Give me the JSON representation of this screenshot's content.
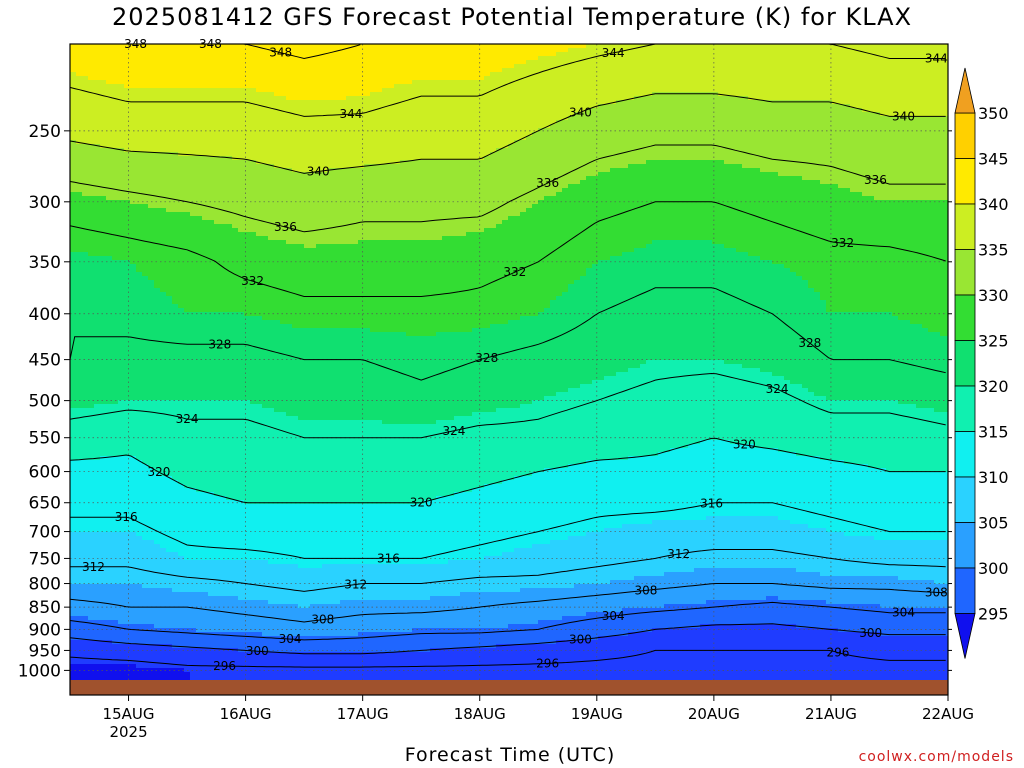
{
  "title": "2025081412 GFS Forecast Potential Temperature (K) for KLAX",
  "watermark": "coolwx.com/models",
  "chart_data": {
    "type": "heatmap",
    "xlabel": "Forecast Time (UTC)",
    "ylabel": "",
    "x_ticks": [
      "15AUG",
      "16AUG",
      "17AUG",
      "18AUG",
      "19AUG",
      "20AUG",
      "21AUG",
      "22AUG"
    ],
    "x_year_label": "2025",
    "x_range_days_after_15AUG": [
      -0.5,
      7.0
    ],
    "y_ticks": [
      250,
      300,
      350,
      400,
      450,
      500,
      550,
      600,
      650,
      700,
      750,
      800,
      850,
      900,
      950,
      1000
    ],
    "y_scale": "log",
    "y_range_hpa": [
      200,
      1025
    ],
    "grid": true,
    "colorbar": {
      "levels": [
        295,
        300,
        305,
        310,
        315,
        320,
        325,
        330,
        335,
        340,
        345,
        350
      ],
      "labels": [
        "295",
        "300",
        "305",
        "310",
        "315",
        "320",
        "325",
        "330",
        "335",
        "340",
        "345",
        "350"
      ],
      "colors": [
        "#1010ee",
        "#1f3cff",
        "#1f66ff",
        "#2aa0ff",
        "#2ad2ff",
        "#10f0f0",
        "#10f0b0",
        "#10e070",
        "#33dd33",
        "#99e633",
        "#ccee22",
        "#ffea00",
        "#ffd000",
        "#f0a020"
      ]
    },
    "contour_levels": [
      296,
      300,
      304,
      308,
      312,
      316,
      320,
      324,
      328,
      332,
      336,
      340,
      344,
      348
    ],
    "profiles": [
      {
        "day": -0.5,
        "theta": [
          [
            1025,
            294
          ],
          [
            1000,
            294
          ],
          [
            950,
            297
          ],
          [
            900,
            302
          ],
          [
            850,
            307
          ],
          [
            800,
            310
          ],
          [
            750,
            313
          ],
          [
            700,
            315
          ],
          [
            650,
            317
          ],
          [
            600,
            319
          ],
          [
            550,
            322
          ],
          [
            500,
            326
          ],
          [
            450,
            328
          ],
          [
            400,
            328
          ],
          [
            350,
            329
          ],
          [
            300,
            334
          ],
          [
            250,
            341
          ],
          [
            200,
            347
          ]
        ]
      },
      {
        "day": 0.0,
        "theta": [
          [
            1025,
            294
          ],
          [
            1000,
            294
          ],
          [
            950,
            298
          ],
          [
            900,
            304
          ],
          [
            850,
            308
          ],
          [
            800,
            310
          ],
          [
            750,
            313
          ],
          [
            700,
            315
          ],
          [
            650,
            317
          ],
          [
            600,
            319
          ],
          [
            550,
            321
          ],
          [
            500,
            325
          ],
          [
            450,
            327
          ],
          [
            400,
            329
          ],
          [
            350,
            330
          ],
          [
            300,
            335
          ],
          [
            250,
            342
          ],
          [
            200,
            348
          ]
        ]
      },
      {
        "day": 0.5,
        "theta": [
          [
            1025,
            295
          ],
          [
            1000,
            295
          ],
          [
            950,
            299
          ],
          [
            900,
            305
          ],
          [
            850,
            308
          ],
          [
            800,
            311
          ],
          [
            750,
            315
          ],
          [
            700,
            317
          ],
          [
            650,
            319
          ],
          [
            600,
            321
          ],
          [
            550,
            323
          ],
          [
            500,
            325
          ],
          [
            450,
            327
          ],
          [
            400,
            330
          ],
          [
            350,
            331
          ],
          [
            300,
            336
          ],
          [
            250,
            342
          ],
          [
            200,
            348
          ]
        ]
      },
      {
        "day": 1.0,
        "theta": [
          [
            1025,
            295
          ],
          [
            1000,
            295
          ],
          [
            950,
            300
          ],
          [
            900,
            306
          ],
          [
            850,
            309
          ],
          [
            800,
            312
          ],
          [
            750,
            315
          ],
          [
            700,
            318
          ],
          [
            650,
            320
          ],
          [
            600,
            322
          ],
          [
            550,
            323
          ],
          [
            500,
            325
          ],
          [
            450,
            327
          ],
          [
            400,
            330
          ],
          [
            350,
            333
          ],
          [
            300,
            337
          ],
          [
            250,
            342
          ],
          [
            200,
            348
          ]
        ]
      },
      {
        "day": 1.5,
        "theta": [
          [
            1025,
            295
          ],
          [
            1000,
            295
          ],
          [
            950,
            301
          ],
          [
            900,
            307
          ],
          [
            850,
            310
          ],
          [
            800,
            313
          ],
          [
            750,
            316
          ],
          [
            700,
            318
          ],
          [
            650,
            320
          ],
          [
            600,
            322
          ],
          [
            550,
            324
          ],
          [
            500,
            326
          ],
          [
            450,
            328
          ],
          [
            400,
            331
          ],
          [
            350,
            334
          ],
          [
            300,
            338
          ],
          [
            250,
            343
          ],
          [
            200,
            349
          ]
        ]
      },
      {
        "day": 2.0,
        "theta": [
          [
            1025,
            295
          ],
          [
            1000,
            295
          ],
          [
            950,
            301
          ],
          [
            900,
            306
          ],
          [
            850,
            309
          ],
          [
            800,
            312
          ],
          [
            750,
            316
          ],
          [
            700,
            318
          ],
          [
            650,
            320
          ],
          [
            600,
            322
          ],
          [
            550,
            324
          ],
          [
            500,
            326
          ],
          [
            450,
            328
          ],
          [
            400,
            331
          ],
          [
            350,
            334
          ],
          [
            300,
            337
          ],
          [
            250,
            343
          ],
          [
            200,
            348
          ]
        ]
      },
      {
        "day": 2.5,
        "theta": [
          [
            1025,
            295
          ],
          [
            1000,
            295
          ],
          [
            950,
            300
          ],
          [
            900,
            305
          ],
          [
            850,
            309
          ],
          [
            800,
            312
          ],
          [
            750,
            316
          ],
          [
            700,
            318
          ],
          [
            650,
            320
          ],
          [
            600,
            322
          ],
          [
            550,
            324
          ],
          [
            500,
            327
          ],
          [
            450,
            329
          ],
          [
            400,
            331
          ],
          [
            350,
            334
          ],
          [
            300,
            337
          ],
          [
            250,
            342
          ],
          [
            200,
            347
          ]
        ]
      },
      {
        "day": 3.0,
        "theta": [
          [
            1025,
            295
          ],
          [
            1000,
            295
          ],
          [
            950,
            299
          ],
          [
            900,
            305
          ],
          [
            850,
            308
          ],
          [
            800,
            311
          ],
          [
            750,
            315
          ],
          [
            700,
            317
          ],
          [
            650,
            319
          ],
          [
            600,
            321
          ],
          [
            550,
            323
          ],
          [
            500,
            326
          ],
          [
            450,
            328
          ],
          [
            400,
            331
          ],
          [
            350,
            333
          ],
          [
            300,
            337
          ],
          [
            250,
            342
          ],
          [
            200,
            347
          ]
        ]
      },
      {
        "day": 3.5,
        "theta": [
          [
            1025,
            295
          ],
          [
            1000,
            295
          ],
          [
            950,
            298
          ],
          [
            900,
            304
          ],
          [
            850,
            307
          ],
          [
            800,
            311
          ],
          [
            750,
            314
          ],
          [
            700,
            316
          ],
          [
            650,
            318
          ],
          [
            600,
            320
          ],
          [
            550,
            323
          ],
          [
            500,
            325
          ],
          [
            450,
            327
          ],
          [
            400,
            330
          ],
          [
            350,
            332
          ],
          [
            300,
            335
          ],
          [
            250,
            340
          ],
          [
            200,
            346
          ]
        ]
      },
      {
        "day": 4.0,
        "theta": [
          [
            1025,
            295
          ],
          [
            1000,
            295
          ],
          [
            950,
            297
          ],
          [
            900,
            302
          ],
          [
            850,
            306
          ],
          [
            800,
            310
          ],
          [
            750,
            313
          ],
          [
            700,
            315
          ],
          [
            650,
            317
          ],
          [
            600,
            319
          ],
          [
            550,
            322
          ],
          [
            500,
            324
          ],
          [
            450,
            326
          ],
          [
            400,
            328
          ],
          [
            350,
            330
          ],
          [
            300,
            333
          ],
          [
            250,
            338
          ],
          [
            200,
            345
          ]
        ]
      },
      {
        "day": 4.5,
        "theta": [
          [
            1025,
            295
          ],
          [
            1000,
            295
          ],
          [
            950,
            296
          ],
          [
            900,
            300
          ],
          [
            850,
            305
          ],
          [
            800,
            309
          ],
          [
            750,
            312
          ],
          [
            700,
            314
          ],
          [
            650,
            317
          ],
          [
            600,
            319
          ],
          [
            550,
            321
          ],
          [
            500,
            323
          ],
          [
            450,
            325
          ],
          [
            400,
            327
          ],
          [
            350,
            329
          ],
          [
            300,
            332
          ],
          [
            250,
            337
          ],
          [
            200,
            344
          ]
        ]
      },
      {
        "day": 5.0,
        "theta": [
          [
            1025,
            295
          ],
          [
            1000,
            295
          ],
          [
            950,
            296
          ],
          [
            900,
            299
          ],
          [
            850,
            304
          ],
          [
            800,
            308
          ],
          [
            750,
            311
          ],
          [
            700,
            314
          ],
          [
            650,
            316
          ],
          [
            600,
            318
          ],
          [
            550,
            320
          ],
          [
            500,
            322
          ],
          [
            450,
            325
          ],
          [
            400,
            327
          ],
          [
            350,
            329
          ],
          [
            300,
            332
          ],
          [
            250,
            337
          ],
          [
            200,
            344
          ]
        ]
      },
      {
        "day": 5.5,
        "theta": [
          [
            1025,
            295
          ],
          [
            1000,
            295
          ],
          [
            950,
            296
          ],
          [
            900,
            299
          ],
          [
            850,
            303
          ],
          [
            800,
            308
          ],
          [
            750,
            311
          ],
          [
            700,
            314
          ],
          [
            650,
            316
          ],
          [
            600,
            318
          ],
          [
            550,
            321
          ],
          [
            500,
            323
          ],
          [
            450,
            326
          ],
          [
            400,
            328
          ],
          [
            350,
            330
          ],
          [
            300,
            333
          ],
          [
            250,
            338
          ],
          [
            200,
            344
          ]
        ]
      },
      {
        "day": 6.0,
        "theta": [
          [
            1025,
            295
          ],
          [
            1000,
            295
          ],
          [
            950,
            296
          ],
          [
            900,
            300
          ],
          [
            850,
            304
          ],
          [
            800,
            309
          ],
          [
            750,
            312
          ],
          [
            700,
            315
          ],
          [
            650,
            317
          ],
          [
            600,
            319
          ],
          [
            550,
            322
          ],
          [
            500,
            325
          ],
          [
            450,
            328
          ],
          [
            400,
            330
          ],
          [
            350,
            331
          ],
          [
            300,
            334
          ],
          [
            250,
            338
          ],
          [
            200,
            344
          ]
        ]
      },
      {
        "day": 6.5,
        "theta": [
          [
            1025,
            295
          ],
          [
            1000,
            295
          ],
          [
            950,
            297
          ],
          [
            900,
            301
          ],
          [
            850,
            305
          ],
          [
            800,
            309
          ],
          [
            750,
            313
          ],
          [
            700,
            316
          ],
          [
            650,
            318
          ],
          [
            600,
            320
          ],
          [
            550,
            322
          ],
          [
            500,
            325
          ],
          [
            450,
            328
          ],
          [
            400,
            330
          ],
          [
            350,
            331
          ],
          [
            300,
            335
          ],
          [
            250,
            339
          ],
          [
            200,
            345
          ]
        ]
      },
      {
        "day": 7.0,
        "theta": [
          [
            1025,
            295
          ],
          [
            1000,
            295
          ],
          [
            950,
            297
          ],
          [
            900,
            301
          ],
          [
            850,
            305
          ],
          [
            800,
            310
          ],
          [
            750,
            313
          ],
          [
            700,
            316
          ],
          [
            650,
            318
          ],
          [
            600,
            320
          ],
          [
            550,
            323
          ],
          [
            500,
            326
          ],
          [
            450,
            329
          ],
          [
            400,
            331
          ],
          [
            350,
            332
          ],
          [
            300,
            335
          ],
          [
            250,
            339
          ],
          [
            200,
            345
          ]
        ]
      }
    ]
  }
}
